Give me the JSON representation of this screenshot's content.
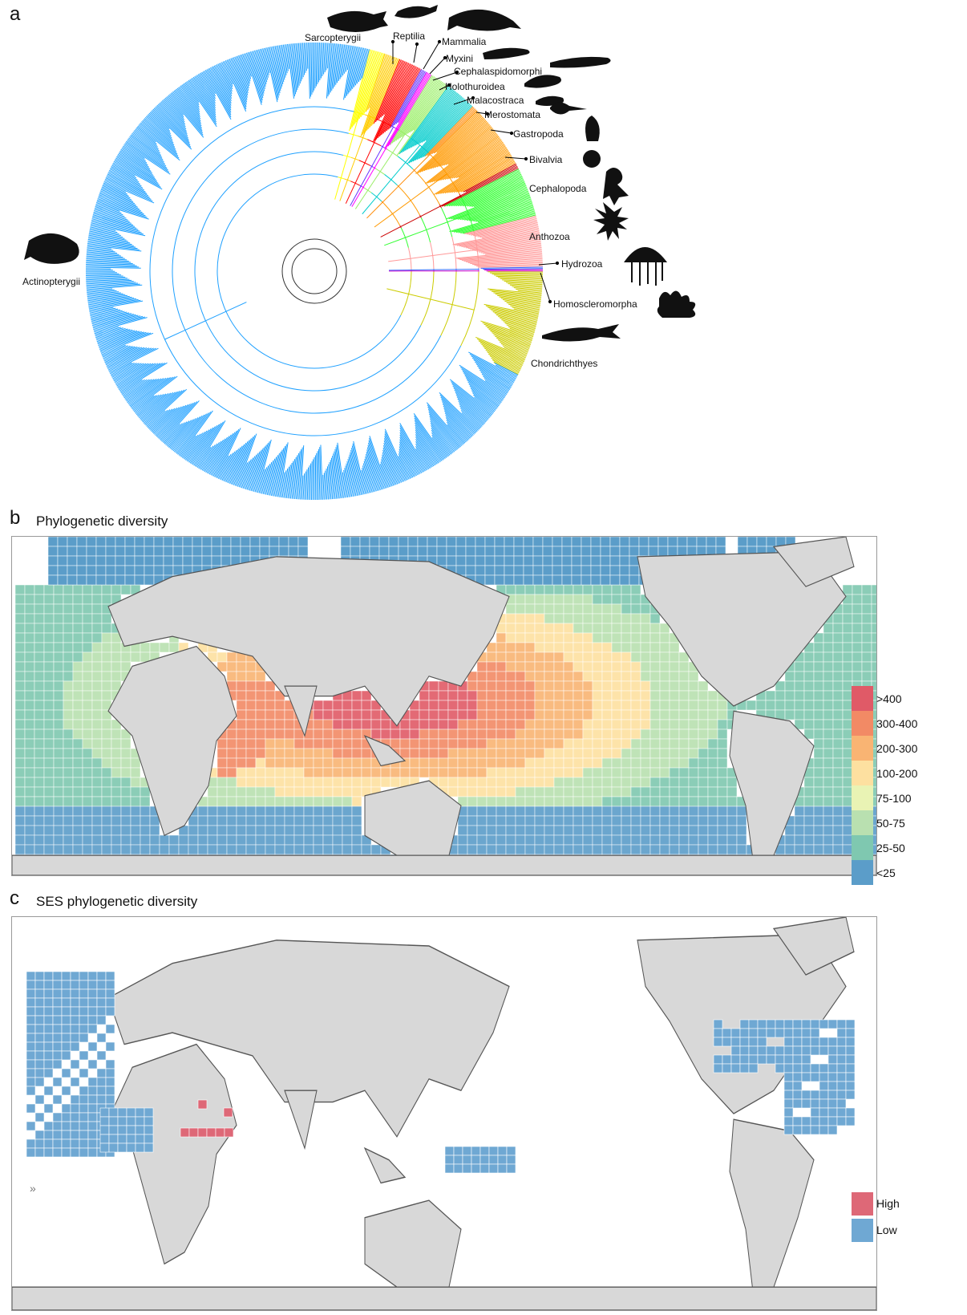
{
  "panels": {
    "a": {
      "letter": "a"
    },
    "b": {
      "letter": "b",
      "title": "Phylogenetic diversity"
    },
    "c": {
      "letter": "c",
      "title": "SES phylogenetic diversity"
    }
  },
  "clades": [
    {
      "name": "Sarcopterygii",
      "color": "#ffff00"
    },
    {
      "name": "Reptilia",
      "color": "#ffcc00"
    },
    {
      "name": "Mammalia",
      "color": "#ff0000"
    },
    {
      "name": "Myxini",
      "color": "#6633ff"
    },
    {
      "name": "Cephalaspidomorphi",
      "color": "#ff00ff"
    },
    {
      "name": "Holothuroidea",
      "color": "#99ee66"
    },
    {
      "name": "Malacostraca",
      "color": "#00cccc"
    },
    {
      "name": "Merostomata",
      "color": "#ff8800"
    },
    {
      "name": "Gastropoda",
      "color": "#ff9900"
    },
    {
      "name": "Bivalvia",
      "color": "#cc0000"
    },
    {
      "name": "Cephalopoda",
      "color": "#33ff33"
    },
    {
      "name": "Anthozoa",
      "color": "#ff9999"
    },
    {
      "name": "Hydrozoa",
      "color": "#3366ff"
    },
    {
      "name": "Homoscleromorpha",
      "color": "#cc00cc"
    },
    {
      "name": "Chondrichthyes",
      "color": "#cccc00"
    },
    {
      "name": "Actinopterygii",
      "color": "#1ea0ff"
    }
  ],
  "legend_b": [
    {
      "label": ">400",
      "color": "#e05a67"
    },
    {
      "label": "300-400",
      "color": "#f28a65"
    },
    {
      "label": "200-300",
      "color": "#f9b473"
    },
    {
      "label": "100-200",
      "color": "#fde0a0"
    },
    {
      "label": "75-100",
      "color": "#e9f3b4"
    },
    {
      "label": "50-75",
      "color": "#b9e0b0"
    },
    {
      "label": "25-50",
      "color": "#7fc8b0"
    },
    {
      "label": "<25",
      "color": "#5b9dc9"
    }
  ],
  "legend_c": [
    {
      "label": "High",
      "color": "#de6877"
    },
    {
      "label": "Low",
      "color": "#6fa8d3"
    }
  ],
  "map_marker": "»"
}
